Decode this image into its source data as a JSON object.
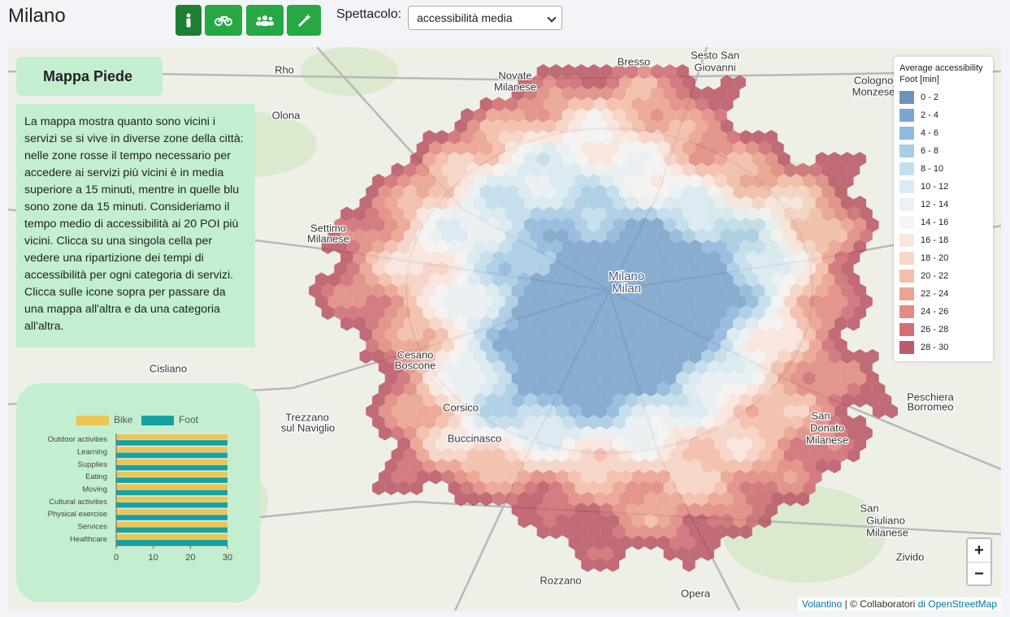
{
  "header": {
    "title": "Milano",
    "select_label": "Spettacolo:",
    "select_value": "accessibilità media"
  },
  "map": {
    "title": "Mappa Piede",
    "description": "La mappa mostra quanto sono vicini i servizi se si vive in diverse zone della città: nelle zone rosse il tempo necessario per accedere ai servizi più vicini è in media superiore a 15 minuti, mentre in quelle blu sono zone da 15 minuti. Consideriamo il tempo medio di accessibilità ai 20 POI più vicini. Clicca su una singola cella per vedere una ripartizione dei tempi di accessibilità per ogni categoria di servizi. Clicca sulle icone sopra per passare da una mappa all'altra e da una categoria all'altra.",
    "labels": [
      "Rho",
      "Sesto San",
      "Giovanni",
      "Bresso",
      "Novate",
      "Milanese",
      "Cologno",
      "Monzese",
      "Milano",
      "Milan",
      "Settimo",
      "Milanese",
      "Cesano",
      "Boscone",
      "Corsico",
      "Buccinasco",
      "Trezzano",
      "sul Naviglio",
      "Cisliano",
      "San",
      "Donato",
      "Milanese",
      "San",
      "Giuliano",
      "Milanese",
      "Rozzano",
      "Opera",
      "Zivido",
      "Olona",
      "Peschiera",
      "Borromeo"
    ],
    "zoom_in": "+",
    "zoom_out": "−",
    "attribution": {
      "link": "Volantino",
      "text": "| © Collaboratori",
      "osm": "di OpenStreetMap"
    }
  },
  "legend": {
    "title": "Average accessibility Foot [min]",
    "items": [
      {
        "label": "0 - 2",
        "color": "#5f86b5"
      },
      {
        "label": "2 - 4",
        "color": "#6e9ccb"
      },
      {
        "label": "4 - 6",
        "color": "#85b1d9"
      },
      {
        "label": "6 - 8",
        "color": "#a1c8e4"
      },
      {
        "label": "8 - 10",
        "color": "#bddbed"
      },
      {
        "label": "10 - 12",
        "color": "#d7e8f3"
      },
      {
        "label": "12 - 14",
        "color": "#eaf0f5"
      },
      {
        "label": "14 - 16",
        "color": "#f6f4f3"
      },
      {
        "label": "16 - 18",
        "color": "#fbe3dc"
      },
      {
        "label": "18 - 20",
        "color": "#f9d0c2"
      },
      {
        "label": "20 - 22",
        "color": "#f5b6a3"
      },
      {
        "label": "22 - 24",
        "color": "#eb9987"
      },
      {
        "label": "24 - 26",
        "color": "#e07f76"
      },
      {
        "label": "26 - 28",
        "color": "#cc5f66"
      },
      {
        "label": "28 - 30",
        "color": "#b54a5a"
      }
    ]
  },
  "chart_data": {
    "type": "hbar",
    "categories": [
      "Outdoor activities",
      "Learning",
      "Supplies",
      "Eating",
      "Moving",
      "Cultural activities",
      "Physical exercise",
      "Services",
      "Healthcare"
    ],
    "series": [
      {
        "name": "Bike",
        "color": "#edc553",
        "values": [
          30,
          30,
          30,
          30,
          30,
          30,
          30,
          30,
          30
        ]
      },
      {
        "name": "Foot",
        "color": "#17a2a2",
        "values": [
          30,
          30,
          30,
          30,
          30,
          30,
          30,
          30,
          30
        ]
      }
    ],
    "xlim": [
      0,
      30
    ],
    "xticks": [
      0,
      10,
      20,
      30
    ]
  }
}
